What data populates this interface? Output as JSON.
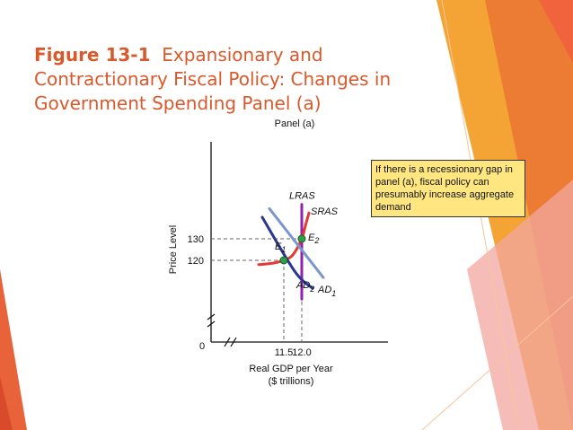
{
  "slide": {
    "title_bold": "Figure 13-1",
    "title_rest": "Expansionary and Contractionary Fiscal Policy: Changes in Government Spending Panel (a)",
    "accent_color": "#d9592b"
  },
  "note": {
    "text": "If there is a recessionary gap in panel (a), fiscal policy can presumably increase aggregate demand",
    "bg_color": "#ffe680"
  },
  "chart_data": {
    "type": "line",
    "title": "Panel (a)",
    "xlabel": "Real GDP per Year",
    "xlabel_units": "($ trillions)",
    "ylabel": "Price Level",
    "origin_label": "0",
    "x_ticks": [
      11.5,
      12.0
    ],
    "x_tick_labels": [
      "11.5",
      "12.0"
    ],
    "y_ticks": [
      120,
      130
    ],
    "y_tick_labels": [
      "120",
      "130"
    ],
    "axis_breaks": true,
    "grid": false,
    "series": [
      {
        "name": "LRAS",
        "color": "#8e24aa",
        "points": [
          [
            12.0,
            146
          ],
          [
            12.0,
            102
          ]
        ]
      },
      {
        "name": "SRAS",
        "color": "#e53935",
        "points": [
          [
            10.8,
            118
          ],
          [
            11.2,
            118.7
          ],
          [
            11.5,
            120
          ],
          [
            11.75,
            122.5
          ],
          [
            12.0,
            130
          ],
          [
            12.1,
            136
          ],
          [
            12.2,
            142
          ]
        ]
      },
      {
        "name": "AD1",
        "color": "#283593",
        "points": [
          [
            10.9,
            140
          ],
          [
            11.8,
            115
          ],
          [
            12.3,
            107
          ]
        ]
      },
      {
        "name": "AD2",
        "color": "#7b96cc",
        "points": [
          [
            11.1,
            144
          ],
          [
            12.6,
            112
          ]
        ]
      }
    ],
    "equilibria": [
      {
        "label": "E1",
        "x": 11.5,
        "y": 120
      },
      {
        "label": "E2",
        "x": 12.0,
        "y": 130
      }
    ]
  }
}
